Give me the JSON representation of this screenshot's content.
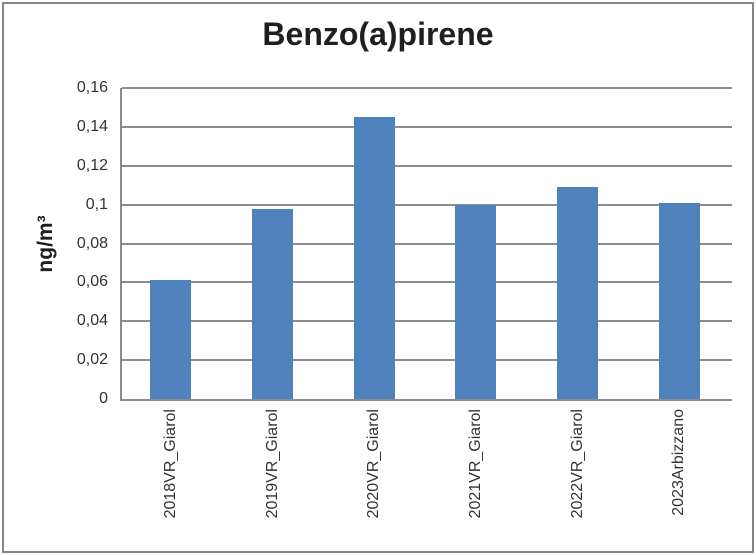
{
  "chart_data": {
    "type": "bar",
    "title": "Benzo(a)pirene",
    "xlabel": "",
    "ylabel": "ng/m³",
    "categories": [
      "2018VR_Giarol",
      "2019VR_Giarol",
      "2020VR_Giarol",
      "2021VR_Giarol",
      "2022VR_Giarol",
      "2023Arbizzano"
    ],
    "values": [
      0.061,
      0.098,
      0.145,
      0.1,
      0.109,
      0.101
    ],
    "ylim": [
      0,
      0.16
    ],
    "ytick_step": 0.02,
    "ytick_labels": [
      "0",
      "0,02",
      "0,04",
      "0,06",
      "0,08",
      "0,1",
      "0,12",
      "0,14",
      "0,16"
    ],
    "decimal_separator": ",",
    "grid": true,
    "legend_position": "none",
    "bar_color": "#4F81BD",
    "gridline_color": "#8C8C8C",
    "axis_color": "#8C8C8C",
    "frame_color": "#858585",
    "title_color": "#1F1F1F",
    "tick_label_color": "#333333",
    "background_color": "#FFFFFF"
  }
}
